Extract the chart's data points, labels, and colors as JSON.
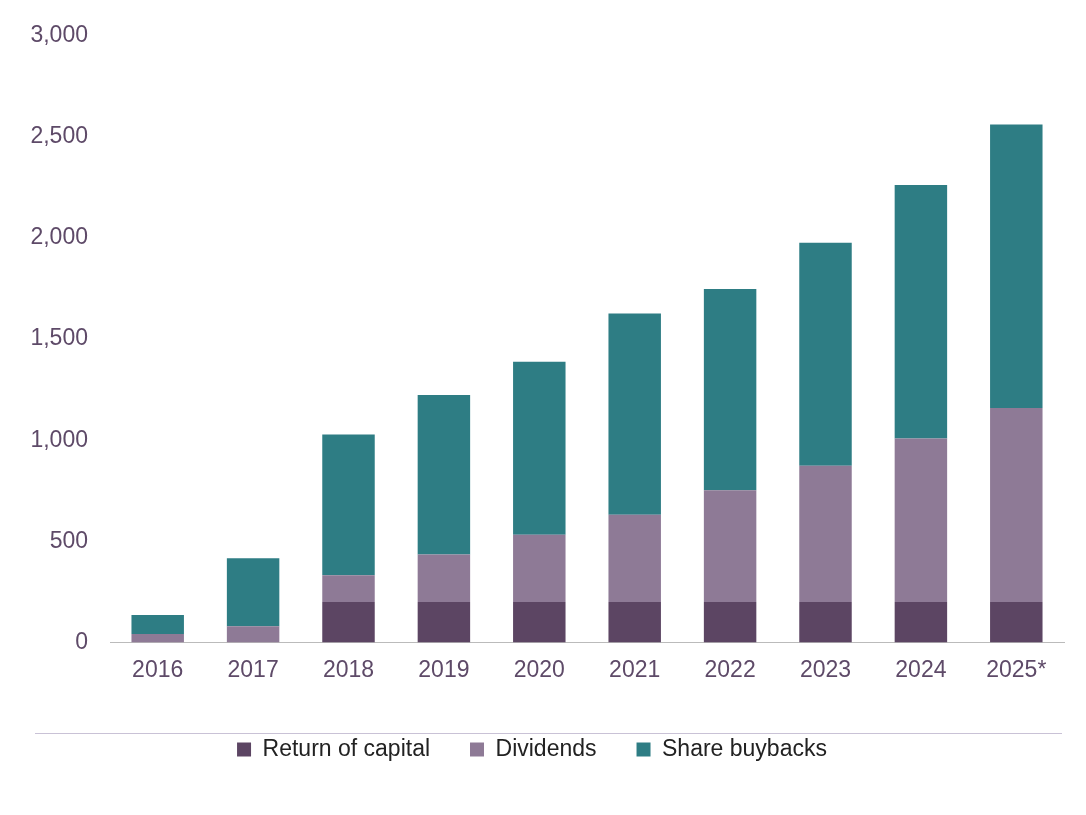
{
  "chart_data": {
    "type": "bar",
    "stacked": true,
    "categories": [
      "2016",
      "2017",
      "2018",
      "2019",
      "2020",
      "2021",
      "2022",
      "2023",
      "2024",
      "2025*"
    ],
    "series": [
      {
        "name": "Return of capital",
        "color": "#5c4563",
        "values": [
          0,
          0,
          200,
          200,
          200,
          200,
          200,
          200,
          200,
          200
        ]
      },
      {
        "name": "Dividends",
        "color": "#8e7a96",
        "values": [
          42,
          80,
          132,
          235,
          333,
          431,
          552,
          674,
          809,
          959
        ]
      },
      {
        "name": "Share buybacks",
        "color": "#2e7d84",
        "values": [
          93,
          336,
          696,
          789,
          855,
          995,
          996,
          1103,
          1253,
          1402
        ]
      }
    ],
    "ylim": [
      0,
      3000
    ],
    "yticks": [
      {
        "value": 0,
        "label": "0"
      },
      {
        "value": 500,
        "label": "500"
      },
      {
        "value": 1000,
        "label": "1,000"
      },
      {
        "value": 1500,
        "label": "1,500"
      },
      {
        "value": 2000,
        "label": "2,000"
      },
      {
        "value": 2500,
        "label": "2,500"
      },
      {
        "value": 3000,
        "label": "3,000"
      }
    ],
    "grid": false,
    "legend": "bottom"
  }
}
